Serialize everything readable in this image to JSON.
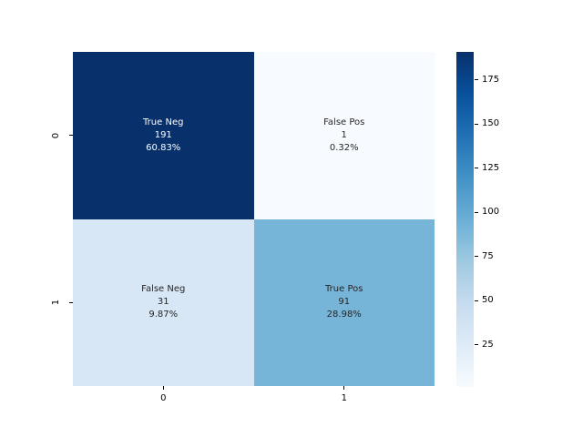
{
  "chart_data": {
    "type": "heatmap",
    "title": "",
    "description": "2x2 confusion matrix heatmap, Blues colormap, with counts and percentages annotated",
    "x_tick_labels": [
      "0",
      "1"
    ],
    "y_tick_labels": [
      "0",
      "1"
    ],
    "cells": [
      {
        "row": 0,
        "col": 0,
        "label": "True Neg",
        "count": "191",
        "percent": "60.83%",
        "value": 191,
        "color": "#08306b",
        "text_color": "#ffffff"
      },
      {
        "row": 0,
        "col": 1,
        "label": "False Pos",
        "count": "1",
        "percent": "0.32%",
        "value": 1,
        "color": "#f7fbff",
        "text_color": "#262626"
      },
      {
        "row": 1,
        "col": 0,
        "label": "False Neg",
        "count": "31",
        "percent": "9.87%",
        "value": 31,
        "color": "#d8e7f5",
        "text_color": "#262626"
      },
      {
        "row": 1,
        "col": 1,
        "label": "True Pos",
        "count": "91",
        "percent": "28.98%",
        "value": 91,
        "color": "#76b4d8",
        "text_color": "#262626"
      }
    ],
    "colorbar": {
      "vmin": 1,
      "vmax": 191,
      "tick_values": [
        25,
        50,
        75,
        100,
        125,
        150,
        175
      ],
      "tick_labels": [
        "25",
        "50",
        "75",
        "100",
        "125",
        "150",
        "175"
      ],
      "gradient_stops_bottom_to_top": [
        "#f7fbff",
        "#deebf7",
        "#c6dbef",
        "#9ecae1",
        "#6baed6",
        "#4292c6",
        "#2171b5",
        "#08519c",
        "#08306b"
      ]
    },
    "legend": {
      "position": "right-colorbar"
    },
    "grid": false
  }
}
